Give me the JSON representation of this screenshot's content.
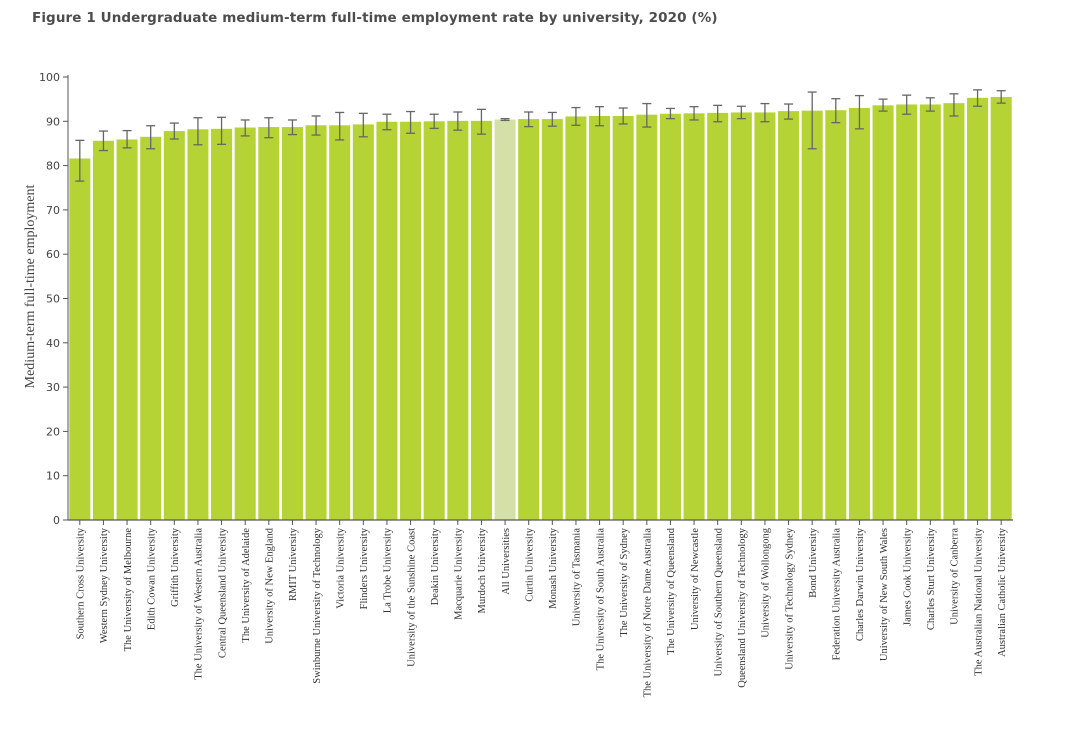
{
  "chart_data": {
    "type": "bar",
    "title": "Figure 1 Undergraduate medium-term full-time employment rate by university, 2020 (%)",
    "ylabel": "Medium-term full-time employment",
    "xlabel": "",
    "ylim": [
      0,
      100
    ],
    "yticks": [
      0,
      10,
      20,
      30,
      40,
      50,
      60,
      70,
      80,
      90,
      100
    ],
    "grid": false,
    "highlight_category": "All Universities",
    "colors": {
      "bar": "#b5d334",
      "highlight": "#d4e0a8",
      "error_bar": "#666666",
      "axis": "#555555"
    },
    "categories": [
      "Southern Cross University",
      "Western Sydney University",
      "The University of Melbourne",
      "Edith Cowan University",
      "Griffith University",
      "The University of Western Australia",
      "Central Queensland University",
      "The University of Adelaide",
      "University of New England",
      "RMIT University",
      "Swinburne University of Technology",
      "Victoria University",
      "Flinders University",
      "La Trobe University",
      "University of the Sunshine Coast",
      "Deakin University",
      "Macquarie University",
      "Murdoch University",
      "All Universities",
      "Curtin University",
      "Monash University",
      "University of Tasmania",
      "The University of South Australia",
      "The University of Sydney",
      "The University of Notre Dame Australia",
      "The University of Queensland",
      "University of Newcastle",
      "University of Southern Queensland",
      "Queensland University of Technology",
      "University of Wollongong",
      "University of Technology Sydney",
      "Bond University",
      "Federation University Australia",
      "Charles Darwin University",
      "University of New South Wales",
      "James Cook University",
      "Charles Sturt University",
      "University of Canberra",
      "The Australian National University",
      "Australian Catholic University"
    ],
    "values": [
      81.6,
      85.6,
      85.9,
      86.5,
      87.8,
      88.2,
      88.3,
      88.6,
      88.7,
      88.7,
      89.1,
      89.1,
      89.3,
      89.9,
      89.9,
      90.0,
      90.1,
      90.1,
      90.4,
      90.5,
      90.5,
      91.1,
      91.2,
      91.2,
      91.5,
      91.7,
      91.8,
      91.9,
      92.0,
      92.0,
      92.3,
      92.4,
      92.5,
      93.0,
      93.6,
      93.8,
      93.8,
      94.1,
      95.3,
      95.5
    ],
    "error_low": [
      76.5,
      83.4,
      84.0,
      83.8,
      86.0,
      84.7,
      84.8,
      86.7,
      86.3,
      87.0,
      86.9,
      85.8,
      86.5,
      88.1,
      87.3,
      88.4,
      88.0,
      87.1,
      90.2,
      88.8,
      88.9,
      89.1,
      89.0,
      89.4,
      88.7,
      90.6,
      90.3,
      89.9,
      90.6,
      89.9,
      90.5,
      83.8,
      89.7,
      88.3,
      92.3,
      91.6,
      92.3,
      91.2,
      93.4,
      94.1
    ],
    "error_high": [
      85.7,
      87.8,
      87.9,
      89.0,
      89.6,
      90.8,
      90.9,
      90.3,
      90.8,
      90.3,
      91.2,
      92.0,
      91.8,
      91.6,
      92.2,
      91.6,
      92.1,
      92.7,
      90.6,
      92.1,
      92.0,
      93.1,
      93.3,
      93.0,
      94.0,
      92.9,
      93.3,
      93.6,
      93.4,
      94.0,
      93.9,
      96.6,
      95.1,
      95.8,
      95.0,
      95.9,
      95.3,
      96.2,
      97.1,
      96.9
    ]
  }
}
